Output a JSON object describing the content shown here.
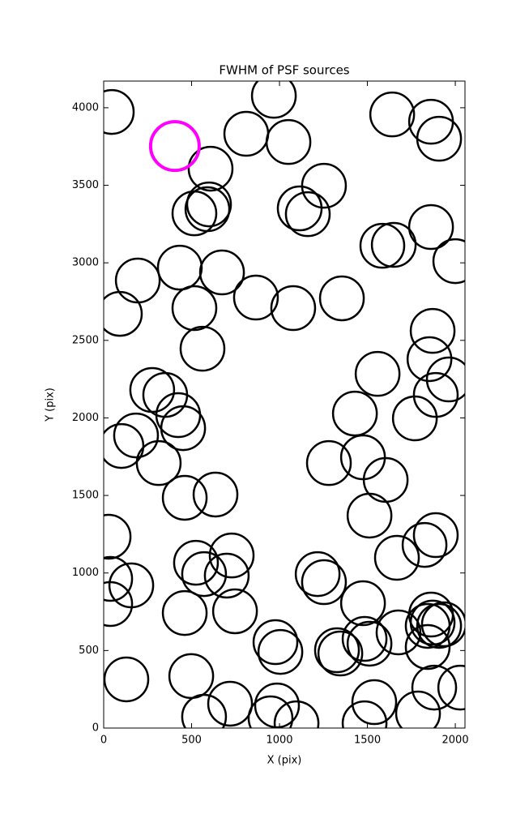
{
  "chart_data": {
    "type": "scatter",
    "title": "FWHM of PSF sources",
    "x_label": "X (pix)",
    "y_label": "Y (pix)",
    "xlim": [
      0,
      2055
    ],
    "ylim": [
      0,
      4172
    ],
    "xticks": [
      0,
      500,
      1000,
      1500,
      2000
    ],
    "yticks": [
      0,
      500,
      1000,
      1500,
      2000,
      2500,
      3000,
      3500,
      4000
    ],
    "series": [
      {
        "color": "#000000",
        "x": [
          46,
          968,
          811,
          1051,
          608,
          1253,
          1115,
          1161,
          599,
          590,
          516,
          1641,
          1862,
          1908,
          1862,
          1585,
          1650,
          2000,
          433,
          673,
          194,
          866,
          1078,
          1355,
          92,
          516,
          562,
          1871,
          1853,
          1558,
          1963,
          1889,
          1770,
          1429,
          276,
          350,
          424,
          452,
          184,
          101,
          313,
          1281,
          1475,
          1604,
          461,
          636,
          1512,
          28,
          1889,
          1825,
          1668,
          728,
          525,
          571,
          700,
          1217,
          1253,
          37,
          157,
          37,
          1475,
          461,
          747,
          1862,
          1871,
          1843,
          1908,
          1935,
          1677,
          1484,
          977,
          1005,
          1327,
          1346,
          1512,
          1843,
          129,
          498,
          1880,
          2028,
          1539,
          719,
          986,
          571,
          949,
          1097,
          1484,
          1788
        ],
        "values": [
          3973,
          4077,
          3832,
          3779,
          3607,
          3497,
          3351,
          3314,
          3377,
          3346,
          3319,
          3957,
          3910,
          3800,
          3231,
          3110,
          3116,
          3011,
          2969,
          2938,
          2886,
          2776,
          2708,
          2771,
          2671,
          2708,
          2446,
          2561,
          2379,
          2284,
          2248,
          2148,
          1997,
          2028,
          2180,
          2148,
          2018,
          1934,
          1887,
          1819,
          1709,
          1709,
          1746,
          1600,
          1485,
          1506,
          1370,
          1234,
          1244,
          1181,
          1098,
          1113,
          1066,
          993,
          983,
          993,
          941,
          962,
          920,
          800,
          805,
          742,
          753,
          732,
          680,
          659,
          659,
          669,
          617,
          575,
          554,
          491,
          502,
          481,
          544,
          523,
          314,
          335,
          261,
          261,
          167,
          157,
          146,
          73,
          63,
          31,
          31,
          94
        ]
      },
      {
        "color": "#ff00ff",
        "x": [
          405
        ],
        "values": [
          3753
        ]
      }
    ]
  }
}
